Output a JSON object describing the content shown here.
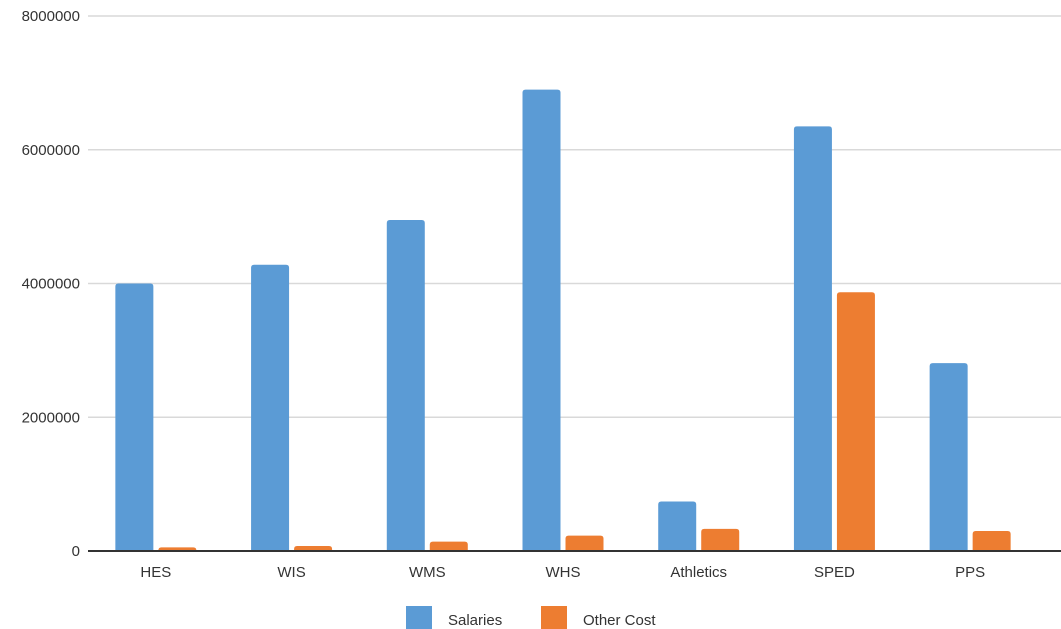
{
  "chart_data": {
    "type": "bar",
    "title": "",
    "xlabel": "",
    "ylabel": "",
    "categories": [
      "HES",
      "WIS",
      "WMS",
      "WHS",
      "Athletics",
      "SPED",
      "PPS"
    ],
    "series": [
      {
        "name": "Salaries",
        "color": "#5B9BD5",
        "values": [
          4000000,
          4280000,
          4950000,
          6900000,
          740000,
          6350000,
          2810000
        ]
      },
      {
        "name": "Other Cost",
        "color": "#ED7D31",
        "values": [
          55000,
          75000,
          140000,
          230000,
          330000,
          3870000,
          300000
        ]
      }
    ],
    "ylim": [
      0,
      8000000
    ],
    "yticks": [
      0,
      2000000,
      4000000,
      6000000,
      8000000
    ],
    "ytick_labels": [
      "0",
      "2000000",
      "4000000",
      "6000000",
      "8000000"
    ],
    "grid": true,
    "legend_position": "bottom"
  }
}
